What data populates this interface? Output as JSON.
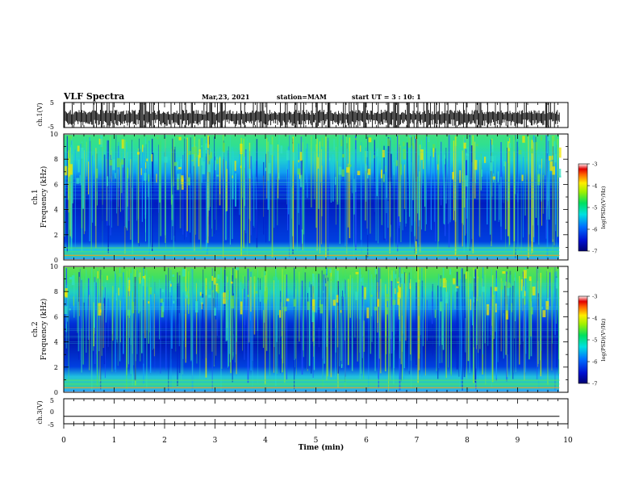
{
  "header": {
    "title": "VLF Spectra",
    "date": "Mar,23, 2021",
    "station": "station=MAM",
    "start_ut": "start UT =   3 : 10: 1"
  },
  "chart_data": [
    {
      "type": "line",
      "panel": "ch1-waveform",
      "ylabel": "ch.1(V)",
      "ylim": [
        -5,
        5
      ],
      "yticks": [
        "5",
        "-5"
      ],
      "description_values": {
        "x_range_min": [
          0,
          9.83
        ],
        "amplitude_range_V": [
          -5,
          5
        ]
      }
    },
    {
      "type": "heatmap",
      "panel": "ch1-spectrogram",
      "ylabel": "ch.1\nFrequency (kHz)",
      "ylim": [
        0,
        10
      ],
      "yticks": [
        "0",
        "2",
        "4",
        "6",
        "8",
        "10"
      ],
      "colorbar": {
        "label": "log(PSD)(V²/Hz)",
        "range": [
          -7,
          -3
        ],
        "ticks": [
          "-3",
          "-4",
          "-5",
          "-6",
          "-7"
        ]
      },
      "x_range_min": [
        0,
        9.83
      ]
    },
    {
      "type": "heatmap",
      "panel": "ch2-spectrogram",
      "ylabel": "ch.2\nFrequency (kHz)",
      "ylim": [
        0,
        10
      ],
      "yticks": [
        "0",
        "2",
        "4",
        "6",
        "8",
        "10"
      ],
      "colorbar": {
        "label": "log(PSD)(V²/Hz)",
        "range": [
          -7,
          -3
        ],
        "ticks": [
          "-3",
          "-4",
          "-5",
          "-6",
          "-7"
        ]
      },
      "x_range_min": [
        0,
        9.83
      ]
    },
    {
      "type": "line",
      "panel": "ch3-waveform",
      "ylabel": "ch.3(V)",
      "ylim": [
        -5,
        5
      ],
      "yticks": [
        "5",
        "0",
        "-5"
      ],
      "series": [
        {
          "values": [
            -2,
            -2
          ]
        }
      ],
      "x": [
        0,
        9.83
      ]
    }
  ],
  "xaxis": {
    "label": "Time (min)",
    "range": [
      0,
      10
    ],
    "ticks": [
      "0",
      "1",
      "2",
      "3",
      "4",
      "5",
      "6",
      "7",
      "8",
      "9",
      "10"
    ]
  },
  "labels": {
    "ch1_wave": "ch.1(V)",
    "ch1_spec_a": "ch.1",
    "ch1_spec_b": "Frequency (kHz)",
    "ch2_spec_a": "ch.2",
    "ch2_spec_b": "Frequency (kHz)",
    "ch3_wave": "ch.3(V)",
    "cbar": "log(PSD)(V²/Hz)"
  }
}
